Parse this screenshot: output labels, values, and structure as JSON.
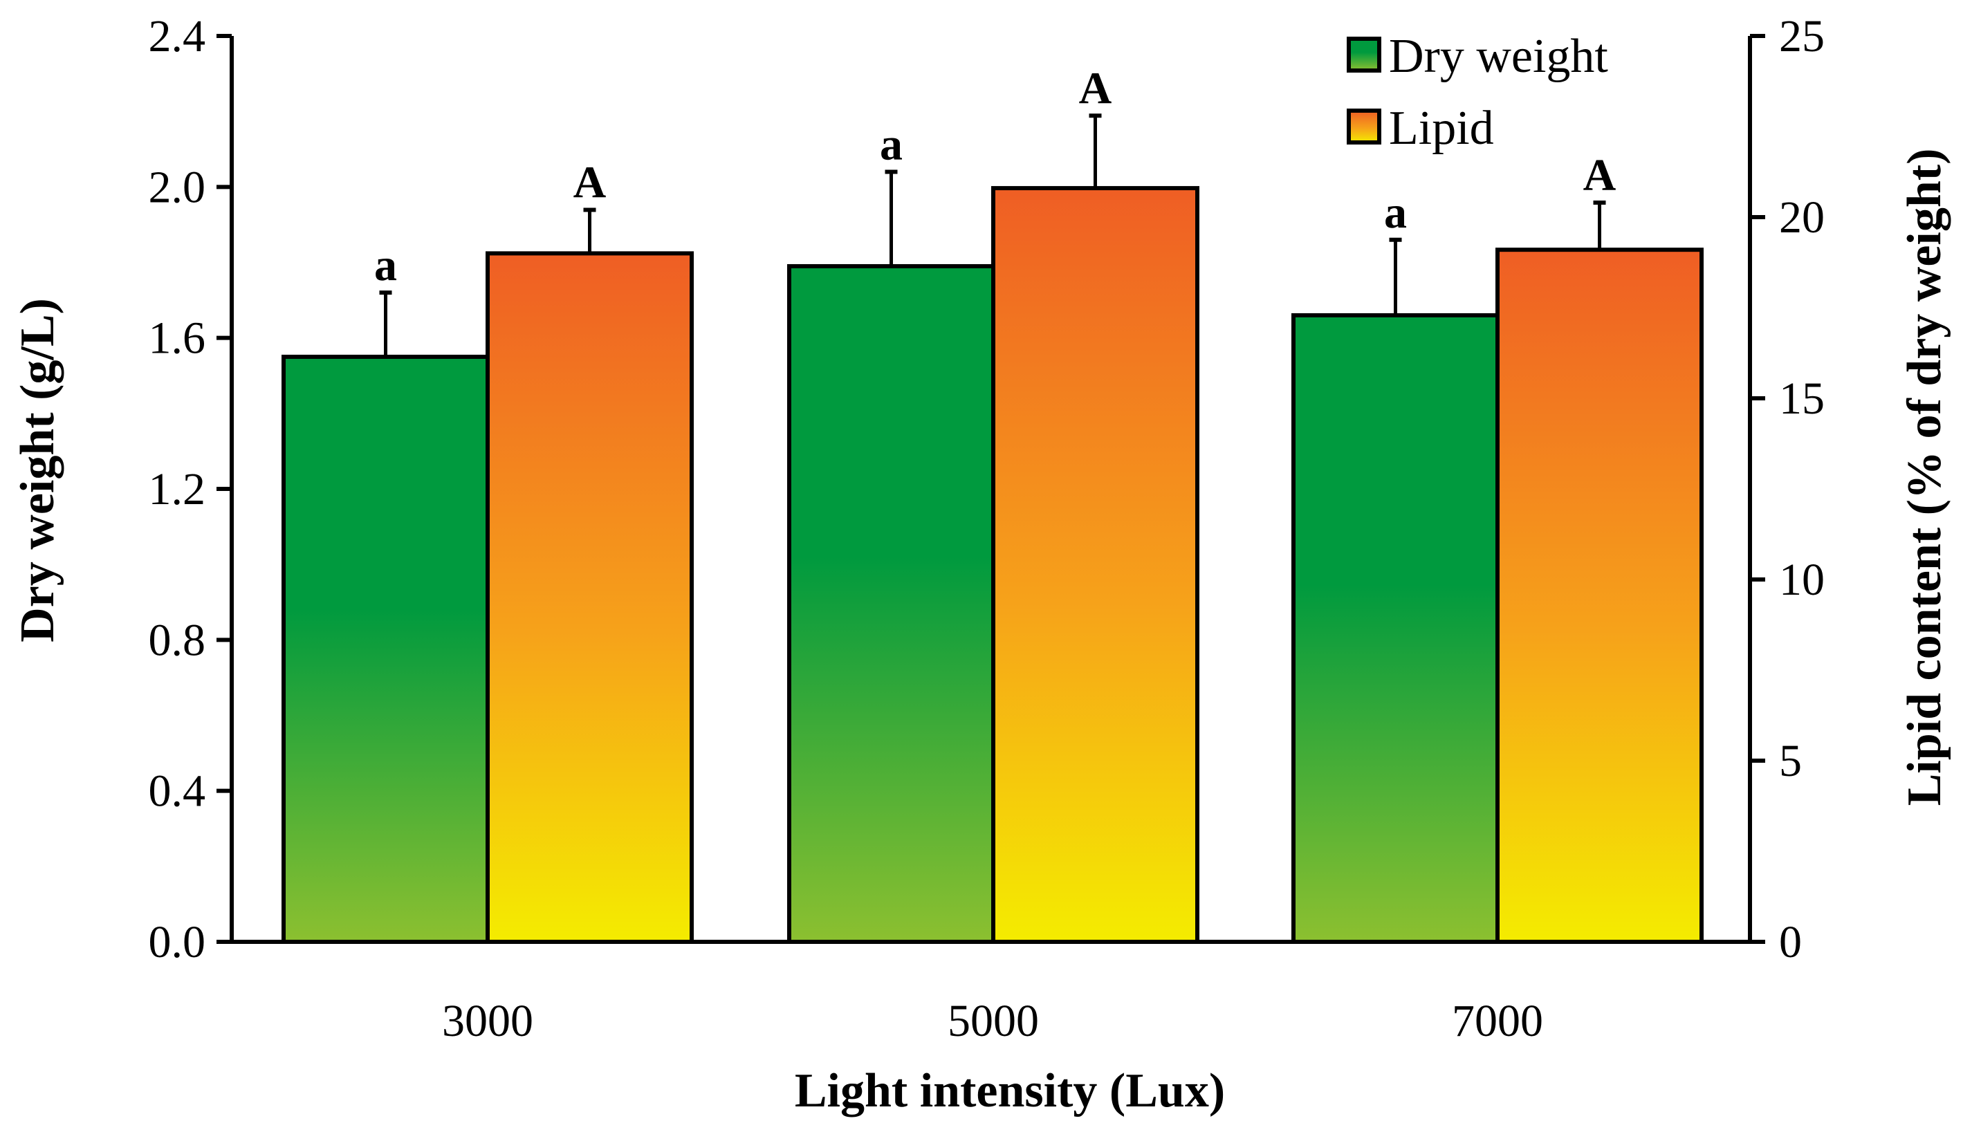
{
  "chart_data": {
    "type": "bar",
    "title": "",
    "categories": [
      "3000",
      "5000",
      "7000"
    ],
    "xlabel": "Light intensity (Lux)",
    "ylabel": "Dry weight (g/L)",
    "y2label": "Lipid content (% of dry weight)",
    "ylim": [
      0,
      2.4
    ],
    "y2lim": [
      0,
      25
    ],
    "yticks": [
      "0.0",
      "0.4",
      "0.8",
      "1.2",
      "1.6",
      "2.0",
      "2.4"
    ],
    "y2ticks": [
      "0",
      "5",
      "10",
      "15",
      "20",
      "25"
    ],
    "legend_position": "top-right",
    "series": [
      {
        "name": "Dry weight",
        "axis": "left",
        "values": [
          1.55,
          1.79,
          1.66
        ],
        "errors": [
          0.17,
          0.25,
          0.2
        ],
        "letters": [
          "a",
          "a",
          "a"
        ]
      },
      {
        "name": "Lipid",
        "axis": "right",
        "values": [
          19.0,
          20.8,
          19.1
        ],
        "errors": [
          1.2,
          2.0,
          1.3
        ],
        "letters": [
          "A",
          "A",
          "A"
        ]
      }
    ],
    "colors": {
      "dry_top": "#009a3e",
      "dry_bottom": "#8cc030",
      "lipid_top": "#ef5e24",
      "lipid_mid": "#f6a21a",
      "lipid_bottom": "#f4ec00"
    }
  }
}
